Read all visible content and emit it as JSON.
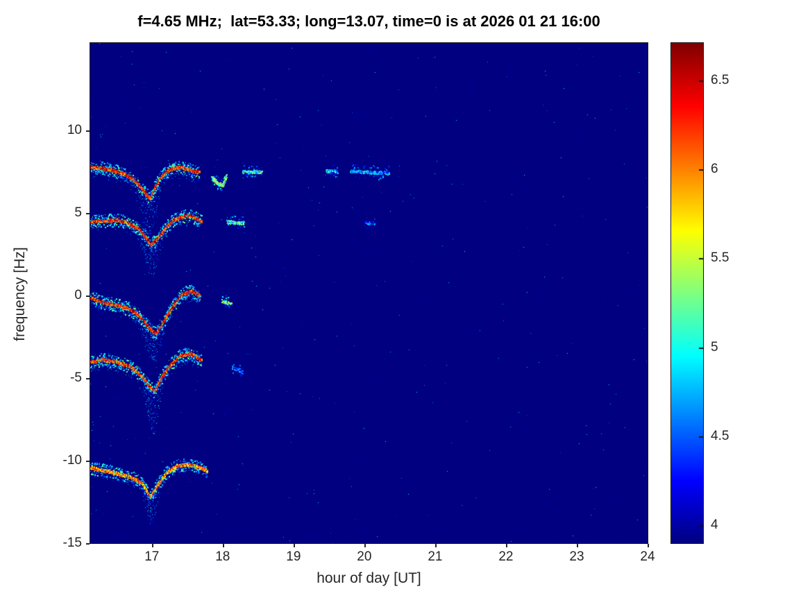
{
  "chart_data": {
    "type": "heatmap",
    "title": "f=4.65 MHz;  lat=53.33; long=13.07, time=0 is at 2026 01 21 16:00",
    "xlabel": "hour of day [UT]",
    "ylabel": "frequency [Hz]",
    "xlim": [
      16.13,
      24.0
    ],
    "ylim": [
      -15,
      15.3
    ],
    "x_ticks": [
      17,
      18,
      19,
      20,
      21,
      22,
      23,
      24
    ],
    "y_ticks": [
      10,
      5,
      0,
      -5,
      -10,
      -15
    ],
    "grid": false,
    "colorbar": {
      "position": "right",
      "colormap": "jet",
      "min": 3.9,
      "max": 6.71,
      "ticks": [
        4,
        4.5,
        5,
        5.5,
        6,
        6.5
      ]
    },
    "background_value": 3.9,
    "traces": [
      {
        "name": "doppler-trace-7.6hz",
        "points": [
          [
            16.13,
            7.8
          ],
          [
            16.3,
            7.75
          ],
          [
            16.45,
            7.6
          ],
          [
            16.6,
            7.4
          ],
          [
            16.72,
            7.1
          ],
          [
            16.82,
            6.7
          ],
          [
            16.9,
            6.2
          ],
          [
            16.97,
            5.9
          ],
          [
            17.03,
            6.5
          ],
          [
            17.12,
            7.2
          ],
          [
            17.25,
            7.7
          ],
          [
            17.4,
            7.8
          ],
          [
            17.55,
            7.6
          ],
          [
            17.67,
            7.5
          ]
        ],
        "core_value": 6.3,
        "halo_value": 4.9,
        "density": 1,
        "spread": 0.55,
        "tail": {
          "t": 16.95,
          "depth": 2.3,
          "width": 0.13
        }
      },
      {
        "name": "trace-7.6hz-seg2",
        "points": [
          [
            17.84,
            7.2
          ],
          [
            17.93,
            6.8
          ],
          [
            18.0,
            6.7
          ],
          [
            18.05,
            7.3
          ]
        ],
        "core_value": 5.4,
        "halo_value": 4.7,
        "density": 0.7,
        "spread": 0,
        "tail": null
      },
      {
        "name": "trace-7.6hz-seg3",
        "points": [
          [
            18.28,
            7.55
          ],
          [
            18.55,
            7.5
          ]
        ],
        "core_value": 5.0,
        "halo_value": 4.5,
        "density": 0.5,
        "spread": 0,
        "tail": null
      },
      {
        "name": "trace-7.6hz-seg4a",
        "points": [
          [
            19.45,
            7.6
          ],
          [
            19.62,
            7.55
          ]
        ],
        "core_value": 4.8,
        "halo_value": 4.4,
        "density": 0.6,
        "spread": 0,
        "tail": null
      },
      {
        "name": "trace-7.6hz-seg4b",
        "points": [
          [
            19.8,
            7.55
          ],
          [
            20.35,
            7.45
          ]
        ],
        "core_value": 4.7,
        "halo_value": 4.35,
        "density": 0.55,
        "spread": 0,
        "tail": null
      },
      {
        "name": "doppler-trace-4.5hz",
        "points": [
          [
            16.13,
            4.5
          ],
          [
            16.3,
            4.55
          ],
          [
            16.5,
            4.6
          ],
          [
            16.65,
            4.45
          ],
          [
            16.8,
            4.1
          ],
          [
            16.9,
            3.6
          ],
          [
            16.98,
            3.1
          ],
          [
            17.06,
            3.4
          ],
          [
            17.18,
            4.1
          ],
          [
            17.3,
            4.6
          ],
          [
            17.45,
            4.85
          ],
          [
            17.58,
            4.8
          ],
          [
            17.7,
            4.5
          ]
        ],
        "core_value": 6.3,
        "halo_value": 4.9,
        "density": 1,
        "spread": 0.5,
        "tail": {
          "t": 17.0,
          "depth": 1.6,
          "width": 0.12
        }
      },
      {
        "name": "trace-4.5hz-seg2",
        "points": [
          [
            18.05,
            4.5
          ],
          [
            18.3,
            4.4
          ]
        ],
        "core_value": 5.2,
        "halo_value": 4.5,
        "density": 0.5,
        "spread": 0,
        "tail": null
      },
      {
        "name": "trace-4.5hz-seg3",
        "points": [
          [
            20.0,
            4.45
          ],
          [
            20.15,
            4.4
          ]
        ],
        "core_value": 4.5,
        "halo_value": 4.2,
        "density": 0.4,
        "spread": 0,
        "tail": null
      },
      {
        "name": "doppler-trace-0hz",
        "points": [
          [
            16.13,
            -0.1
          ],
          [
            16.3,
            -0.4
          ],
          [
            16.5,
            -0.55
          ],
          [
            16.68,
            -0.8
          ],
          [
            16.82,
            -1.2
          ],
          [
            16.95,
            -1.9
          ],
          [
            17.05,
            -2.3
          ],
          [
            17.15,
            -1.6
          ],
          [
            17.28,
            -0.7
          ],
          [
            17.42,
            0.1
          ],
          [
            17.55,
            0.3
          ],
          [
            17.68,
            0.0
          ]
        ],
        "core_value": 6.35,
        "halo_value": 4.9,
        "density": 1,
        "spread": 0.5,
        "tail": {
          "t": 17.0,
          "depth": 1.3,
          "width": 0.14
        }
      },
      {
        "name": "trace-0hz-seg2",
        "points": [
          [
            17.98,
            -0.3
          ],
          [
            18.12,
            -0.5
          ]
        ],
        "core_value": 5.3,
        "halo_value": 4.5,
        "density": 0.5,
        "spread": 0,
        "tail": null
      },
      {
        "name": "doppler-trace-neg4hz",
        "points": [
          [
            16.13,
            -4.0
          ],
          [
            16.3,
            -3.85
          ],
          [
            16.5,
            -4.0
          ],
          [
            16.68,
            -4.25
          ],
          [
            16.82,
            -4.7
          ],
          [
            16.95,
            -5.4
          ],
          [
            17.03,
            -5.8
          ],
          [
            17.12,
            -5.0
          ],
          [
            17.25,
            -4.2
          ],
          [
            17.4,
            -3.6
          ],
          [
            17.55,
            -3.5
          ],
          [
            17.7,
            -3.9
          ]
        ],
        "core_value": 6.3,
        "halo_value": 4.9,
        "density": 1,
        "spread": 0.55,
        "tail": {
          "t": 17.02,
          "depth": 2.0,
          "width": 0.12
        }
      },
      {
        "name": "trace-neg4hz-seg2",
        "points": [
          [
            18.12,
            -4.3
          ],
          [
            18.28,
            -4.6
          ]
        ],
        "core_value": 4.6,
        "halo_value": 4.2,
        "density": 0.4,
        "spread": 0,
        "tail": null
      },
      {
        "name": "doppler-trace-neg10.5hz",
        "points": [
          [
            16.13,
            -10.4
          ],
          [
            16.3,
            -10.55
          ],
          [
            16.5,
            -10.75
          ],
          [
            16.68,
            -10.95
          ],
          [
            16.85,
            -11.3
          ],
          [
            16.97,
            -12.2
          ],
          [
            17.07,
            -11.5
          ],
          [
            17.2,
            -10.7
          ],
          [
            17.35,
            -10.3
          ],
          [
            17.5,
            -10.2
          ],
          [
            17.65,
            -10.35
          ],
          [
            17.78,
            -10.6
          ]
        ],
        "core_value": 6.0,
        "halo_value": 4.8,
        "density": 0.9,
        "spread": 0.45,
        "tail": {
          "t": 16.99,
          "depth": 1.3,
          "width": 0.1
        }
      }
    ],
    "noise": {
      "faint_count": 3000,
      "faint_value_min": 3.92,
      "faint_value_max": 4.15,
      "speck_count": 320,
      "speck_value_min": 4.3,
      "speck_value_max": 5.0,
      "stripes": [
        {
          "t": 19.95,
          "count": 60
        },
        {
          "t": 20.3,
          "count": 40
        },
        {
          "t": 21.55,
          "count": 30
        },
        {
          "t": 22.05,
          "count": 25
        },
        {
          "t": 23.0,
          "count": 15
        }
      ]
    }
  }
}
